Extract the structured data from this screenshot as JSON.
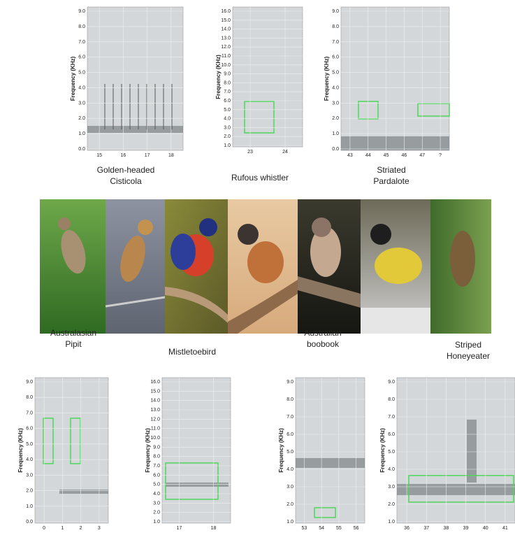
{
  "panels": [
    {
      "label": [
        "Golden-headed",
        "Cisticola"
      ],
      "ylabel": "Frequency (KHz)",
      "yticks": [
        "0.0",
        "1.0",
        "2.0",
        "3.0",
        "4.0",
        "5.0",
        "6.0",
        "7.0",
        "8.0",
        "9.0"
      ],
      "xticks": [
        "15",
        "16",
        "17",
        "18"
      ]
    },
    {
      "label": [
        "Rufous whistler"
      ],
      "ylabel": "Frequency (KHz)",
      "yticks": [
        "1.0",
        "2.0",
        "3.0",
        "4.0",
        "5.0",
        "6.0",
        "7.0",
        "8.0",
        "9.0",
        "10.0",
        "11.0",
        "12.0",
        "13.0",
        "14.0",
        "15.0",
        "16.0"
      ],
      "xticks": [
        "23",
        "24"
      ]
    },
    {
      "label": [
        "Striated",
        "Pardalote"
      ],
      "ylabel": "Frequency (KHz)",
      "yticks": [
        "0.0",
        "1.0",
        "2.0",
        "3.0",
        "4.0",
        "5.0",
        "6.0",
        "7.0",
        "8.0",
        "9.0"
      ],
      "xticks": [
        "43",
        "44",
        "45",
        "46",
        "47",
        "?"
      ]
    },
    {
      "label": [
        "Australasian",
        "Pipit"
      ],
      "ylabel": "Frequency (KHz)",
      "yticks": [
        "0.0",
        "1.0",
        "2.0",
        "3.0",
        "4.0",
        "5.0",
        "6.0",
        "7.0",
        "8.0",
        "9.0"
      ],
      "xticks": [
        "0",
        "1",
        "2",
        "3"
      ]
    },
    {
      "label": [
        "Mistletoebird"
      ],
      "ylabel": "Frequency (KHz)",
      "yticks": [
        "1.0",
        "2.0",
        "3.0",
        "4.0",
        "5.0",
        "6.0",
        "7.0",
        "8.0",
        "9.0",
        "10.0",
        "11.0",
        "12.0",
        "13.0",
        "14.0",
        "15.0",
        "16.0"
      ],
      "xticks": [
        "17",
        "18"
      ]
    },
    {
      "label": [
        "Australian",
        "boobook"
      ],
      "ylabel": "Frequency (KHz)",
      "yticks": [
        "1.0",
        "2.0",
        "3.0",
        "4.0",
        "5.0",
        "6.0",
        "7.0",
        "8.0",
        "9.0"
      ],
      "xticks": [
        "53",
        "54",
        "55",
        "56"
      ]
    },
    {
      "label": [
        "Striped",
        "Honeyeater"
      ],
      "ylabel": "Frequency (KHz)",
      "yticks": [
        "1.0",
        "2.0",
        "3.0",
        "4.0",
        "5.0",
        "6.0",
        "7.0",
        "8.0",
        "9.0"
      ],
      "xticks": [
        "36",
        "37",
        "38",
        "39",
        "40",
        "41"
      ]
    }
  ]
}
